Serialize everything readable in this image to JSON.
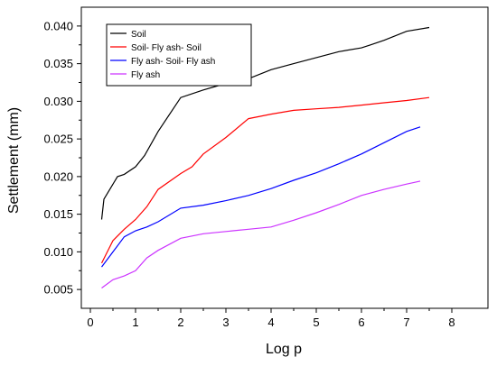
{
  "chart_data": {
    "type": "line",
    "title": "",
    "xlabel": "Log p",
    "ylabel": "Settlement (mm)",
    "xlim": [
      -0.2,
      8.8
    ],
    "ylim": [
      0.0025,
      0.0425
    ],
    "xticks": [
      0,
      1,
      2,
      3,
      4,
      5,
      6,
      7,
      8
    ],
    "xtick_labels": [
      "0",
      "1",
      "2",
      "3",
      "4",
      "5",
      "6",
      "7",
      "8"
    ],
    "yticks": [
      0.005,
      0.01,
      0.015,
      0.02,
      0.025,
      0.03,
      0.035,
      0.04
    ],
    "ytick_labels": [
      "0.005",
      "0.010",
      "0.015",
      "0.020",
      "0.025",
      "0.030",
      "0.035",
      "0.040"
    ],
    "grid": false,
    "legend_position": "top-left",
    "series": [
      {
        "name": "Soil",
        "color": "#000000",
        "x": [
          0.25,
          0.3,
          0.45,
          0.6,
          0.75,
          1.0,
          1.2,
          1.5,
          2.0,
          2.5,
          2.9,
          3.5,
          4.0,
          4.5,
          5.0,
          5.5,
          6.0,
          6.2,
          6.5,
          7.0,
          7.5
        ],
        "y": [
          0.0143,
          0.017,
          0.0185,
          0.02,
          0.0203,
          0.0213,
          0.0228,
          0.026,
          0.0305,
          0.0315,
          0.0322,
          0.033,
          0.0342,
          0.035,
          0.0358,
          0.0366,
          0.0371,
          0.0375,
          0.0381,
          0.0393,
          0.0398
        ]
      },
      {
        "name": "Soil- Fly ash- Soil",
        "color": "#ff0000",
        "x": [
          0.25,
          0.5,
          0.75,
          1.0,
          1.25,
          1.5,
          2.0,
          2.25,
          2.5,
          3.0,
          3.5,
          4.0,
          4.5,
          5.0,
          5.5,
          6.0,
          6.5,
          7.0,
          7.5
        ],
        "y": [
          0.0085,
          0.0115,
          0.013,
          0.0143,
          0.016,
          0.0183,
          0.0204,
          0.0213,
          0.023,
          0.0252,
          0.0277,
          0.0283,
          0.0288,
          0.029,
          0.0292,
          0.0295,
          0.0298,
          0.0301,
          0.0305
        ]
      },
      {
        "name": "Fly ash- Soil- Fly ash",
        "color": "#0000ff",
        "x": [
          0.25,
          0.5,
          0.75,
          1.0,
          1.25,
          1.5,
          2.0,
          2.5,
          3.0,
          3.5,
          4.0,
          4.5,
          5.0,
          5.5,
          6.0,
          6.5,
          7.0,
          7.3
        ],
        "y": [
          0.008,
          0.01,
          0.012,
          0.0128,
          0.0133,
          0.014,
          0.0158,
          0.0162,
          0.0168,
          0.0175,
          0.0184,
          0.0195,
          0.0205,
          0.0217,
          0.023,
          0.0245,
          0.026,
          0.0266
        ]
      },
      {
        "name": "Fly ash",
        "color": "#cc33ff",
        "x": [
          0.25,
          0.5,
          0.75,
          1.0,
          1.25,
          1.5,
          2.0,
          2.5,
          3.0,
          3.5,
          4.0,
          4.5,
          5.0,
          5.5,
          6.0,
          6.5,
          7.0,
          7.3
        ],
        "y": [
          0.0052,
          0.0063,
          0.0068,
          0.0075,
          0.0092,
          0.0102,
          0.0118,
          0.0124,
          0.0127,
          0.013,
          0.0133,
          0.0142,
          0.0152,
          0.0163,
          0.0175,
          0.0183,
          0.019,
          0.0194
        ]
      }
    ]
  }
}
